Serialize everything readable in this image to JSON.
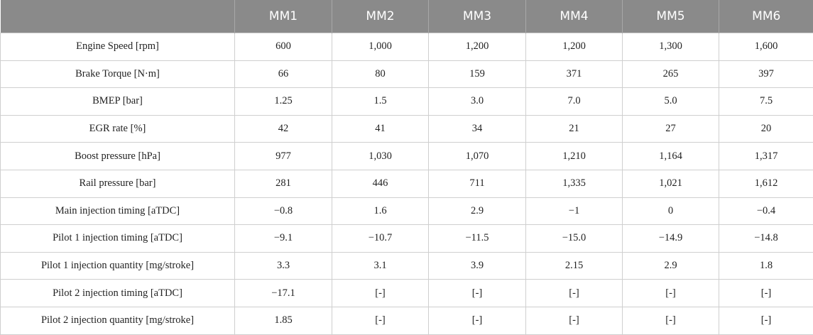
{
  "table": {
    "header": [
      "MM1",
      "MM2",
      "MM3",
      "MM4",
      "MM5",
      "MM6"
    ],
    "rows": [
      [
        "Engine Speed [rpm]",
        "600",
        "1,000",
        "1,200",
        "1,200",
        "1,300",
        "1,600"
      ],
      [
        "Brake Torque [N·m]",
        "66",
        "80",
        "159",
        "371",
        "265",
        "397"
      ],
      [
        "BMEP [bar]",
        "1.25",
        "1.5",
        "3.0",
        "7.0",
        "5.0",
        "7.5"
      ],
      [
        "EGR rate [%]",
        "42",
        "41",
        "34",
        "21",
        "27",
        "20"
      ],
      [
        "Boost pressure [hPa]",
        "977",
        "1,030",
        "1,070",
        "1,210",
        "1,164",
        "1,317"
      ],
      [
        "Rail pressure [bar]",
        "281",
        "446",
        "711",
        "1,335",
        "1,021",
        "1,612"
      ],
      [
        "Main injection timing [aTDC]",
        "−0.8",
        "1.6",
        "2.9",
        "−1",
        "0",
        "−0.4"
      ],
      [
        "Pilot 1 injection timing [aTDC]",
        "−9.1",
        "−10.7",
        "−11.5",
        "−15.0",
        "−14.9",
        "−14.8"
      ],
      [
        "Pilot 1 injection quantity [mg/stroke]",
        "3.3",
        "3.1",
        "3.9",
        "2.15",
        "2.9",
        "1.8"
      ],
      [
        "Pilot 2 injection timing [aTDC]",
        "−17.1",
        "[-]",
        "[-]",
        "[-]",
        "[-]",
        "[-]"
      ],
      [
        "Pilot 2 injection quantity [mg/stroke]",
        "1.85",
        "[-]",
        "[-]",
        "[-]",
        "[-]",
        "[-]"
      ]
    ]
  }
}
